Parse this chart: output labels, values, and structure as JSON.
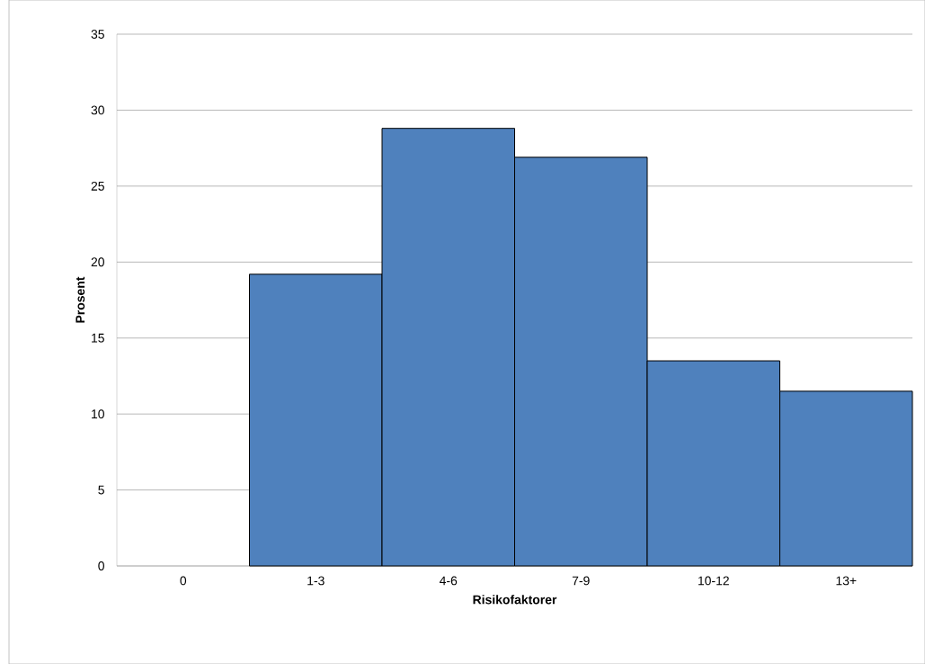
{
  "chart_data": {
    "type": "bar",
    "xlabel": "Risikofaktorer",
    "ylabel": "Prosent",
    "categories": [
      "0",
      "1-3",
      "4-6",
      "7-9",
      "10-12",
      "13+"
    ],
    "values": [
      0,
      19.2,
      28.8,
      26.9,
      13.5,
      11.5
    ],
    "color": "#4f81bd",
    "ylim": [
      0,
      35
    ],
    "yticks": [
      0,
      5,
      10,
      15,
      20,
      25,
      30,
      35
    ],
    "grid": "y"
  }
}
